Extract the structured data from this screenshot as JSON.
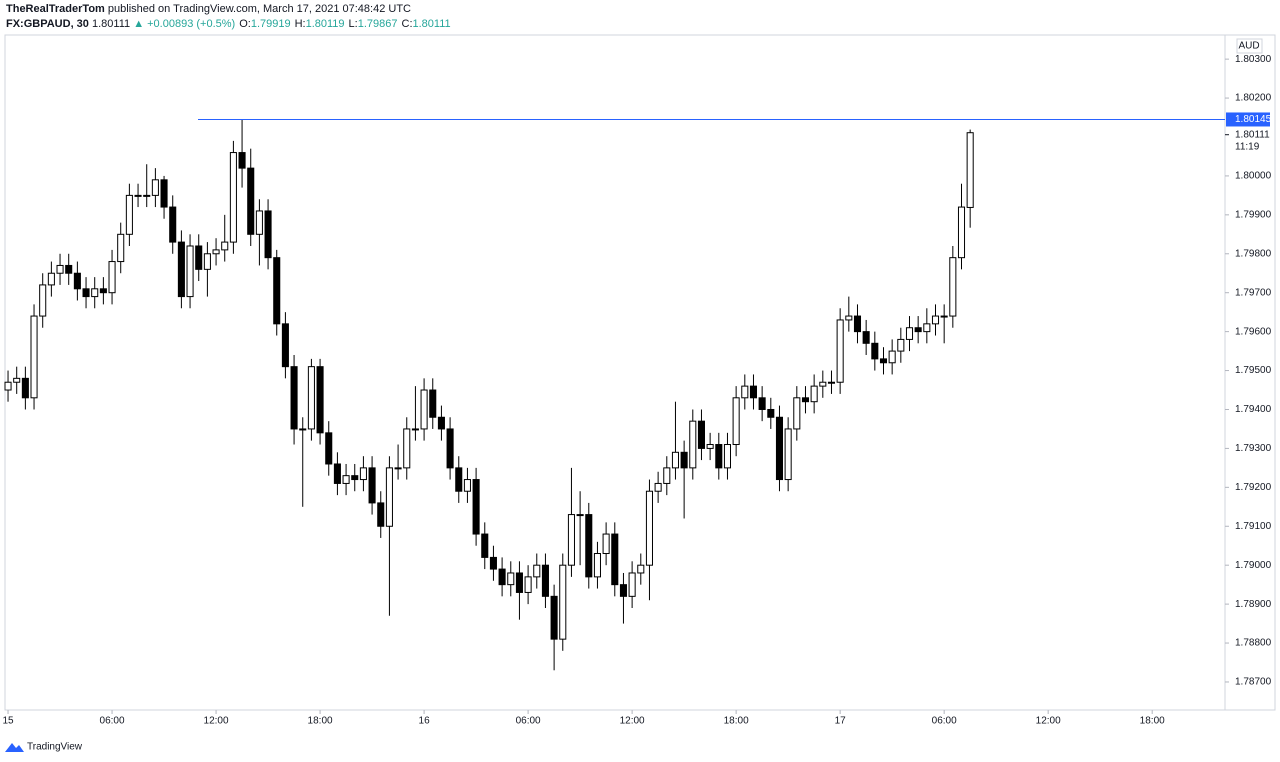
{
  "header": {
    "author": "TheRealTraderTom",
    "published": "published on TradingView.com, March 17, 2021 07:48:42 UTC",
    "symbol": "FX:GBPAUD, 30",
    "price": "1.80111",
    "change": "▲ +0.00893 (+0.5%)",
    "ohlc": [
      {
        "key": "O:",
        "value": "1.79919"
      },
      {
        "key": "H:",
        "value": "1.80119"
      },
      {
        "key": "L:",
        "value": "1.79867"
      },
      {
        "key": "C:",
        "value": "1.80111"
      }
    ]
  },
  "chart_data": {
    "type": "candlestick",
    "currency": "AUD",
    "up_color": "#ffffff",
    "down_color": "#000000",
    "wick_color": "#000000",
    "xlim": [
      -0.35,
      140.4
    ],
    "xticks": [
      {
        "value": 0,
        "label": "15"
      },
      {
        "value": 12,
        "label": "06:00"
      },
      {
        "value": 24,
        "label": "12:00"
      },
      {
        "value": 36,
        "label": "18:00"
      },
      {
        "value": 48,
        "label": "16"
      },
      {
        "value": 60,
        "label": "06:00"
      },
      {
        "value": 72,
        "label": "12:00"
      },
      {
        "value": 84,
        "label": "18:00"
      },
      {
        "value": 96,
        "label": "17"
      },
      {
        "value": 108,
        "label": "06:00"
      },
      {
        "value": 120,
        "label": "12:00"
      },
      {
        "value": 132,
        "label": "18:00"
      }
    ],
    "ylim": [
      1.78628,
      1.80362
    ],
    "yticks": [
      {
        "value": 1.787,
        "label": "1.78700"
      },
      {
        "value": 1.788,
        "label": "1.78800"
      },
      {
        "value": 1.789,
        "label": "1.78900"
      },
      {
        "value": 1.79,
        "label": "1.79000"
      },
      {
        "value": 1.791,
        "label": "1.79100"
      },
      {
        "value": 1.792,
        "label": "1.79200"
      },
      {
        "value": 1.793,
        "label": "1.79300"
      },
      {
        "value": 1.794,
        "label": "1.79400"
      },
      {
        "value": 1.795,
        "label": "1.79500"
      },
      {
        "value": 1.796,
        "label": "1.79600"
      },
      {
        "value": 1.797,
        "label": "1.79700"
      },
      {
        "value": 1.798,
        "label": "1.79800"
      },
      {
        "value": 1.799,
        "label": "1.79900"
      },
      {
        "value": 1.8,
        "label": "1.80000"
      },
      {
        "value": 1.802,
        "label": "1.80200"
      },
      {
        "value": 1.803,
        "label": "1.80300"
      }
    ],
    "hline": {
      "value": 1.80145,
      "color": "#2962ff"
    },
    "last_price": 1.80111,
    "countdown": "11:19",
    "open": [
      1.7945,
      1.7947,
      1.7948,
      1.7943,
      1.7964,
      1.7972,
      1.7975,
      1.7977,
      1.7975,
      1.7971,
      1.7969,
      1.7971,
      1.797,
      1.7978,
      1.7985,
      1.7995,
      1.7995,
      1.7995,
      1.7999,
      1.7992,
      1.7983,
      1.7969,
      1.7982,
      1.7976,
      1.798,
      1.7981,
      1.7983,
      1.8006,
      1.8002,
      1.7985,
      1.7991,
      1.7979,
      1.7962,
      1.7951,
      1.7935,
      1.7935,
      1.7951,
      1.7934,
      1.7926,
      1.7921,
      1.7923,
      1.7922,
      1.7925,
      1.7916,
      1.791,
      1.7925,
      1.7925,
      1.7935,
      1.7935,
      1.7945,
      1.7938,
      1.7935,
      1.7925,
      1.7919,
      1.7922,
      1.7908,
      1.7902,
      1.7899,
      1.7895,
      1.7898,
      1.7893,
      1.7897,
      1.79,
      1.7892,
      1.7881,
      1.79,
      1.7913,
      1.7913,
      1.7897,
      1.7903,
      1.7908,
      1.7895,
      1.7892,
      1.7898,
      1.79,
      1.7919,
      1.7921,
      1.7925,
      1.7929,
      1.7925,
      1.7937,
      1.793,
      1.7931,
      1.7925,
      1.7931,
      1.7943,
      1.7946,
      1.7943,
      1.794,
      1.7938,
      1.7922,
      1.7935,
      1.7943,
      1.7942,
      1.7946,
      1.7947,
      1.7947,
      1.7963,
      1.7964,
      1.796,
      1.7957,
      1.7953,
      1.7952,
      1.7955,
      1.7958,
      1.7961,
      1.796,
      1.7962,
      1.7964,
      1.7964,
      1.7979,
      1.79919
    ],
    "high": [
      1.795,
      1.7951,
      1.7951,
      1.7967,
      1.7975,
      1.7978,
      1.798,
      1.798,
      1.7978,
      1.7974,
      1.7974,
      1.7974,
      1.7981,
      1.7988,
      1.7998,
      1.7998,
      1.8003,
      1.8002,
      1.8,
      1.7995,
      1.7986,
      1.7985,
      1.7985,
      1.7983,
      1.7984,
      1.799,
      1.8009,
      1.80145,
      1.8007,
      1.7994,
      1.7994,
      1.7981,
      1.7965,
      1.7954,
      1.7938,
      1.7953,
      1.7953,
      1.7937,
      1.7929,
      1.7926,
      1.7926,
      1.7928,
      1.7928,
      1.7919,
      1.7928,
      1.7931,
      1.7938,
      1.7946,
      1.7948,
      1.7948,
      1.7941,
      1.7938,
      1.7928,
      1.7925,
      1.7925,
      1.7911,
      1.7905,
      1.7902,
      1.7901,
      1.7901,
      1.79,
      1.7903,
      1.7903,
      1.7895,
      1.7903,
      1.7925,
      1.7919,
      1.7916,
      1.7906,
      1.7911,
      1.7911,
      1.7898,
      1.7901,
      1.7903,
      1.7922,
      1.7924,
      1.7928,
      1.7942,
      1.7932,
      1.794,
      1.794,
      1.7934,
      1.7934,
      1.7934,
      1.7946,
      1.7949,
      1.7949,
      1.7946,
      1.7943,
      1.7941,
      1.7938,
      1.7946,
      1.7946,
      1.7949,
      1.795,
      1.795,
      1.7966,
      1.7969,
      1.7967,
      1.7963,
      1.796,
      1.7956,
      1.7958,
      1.7961,
      1.7964,
      1.7964,
      1.7966,
      1.7967,
      1.7967,
      1.7982,
      1.7998,
      1.80119
    ],
    "low": [
      1.7942,
      1.7944,
      1.794,
      1.794,
      1.7961,
      1.7969,
      1.7972,
      1.7972,
      1.7968,
      1.7966,
      1.7966,
      1.7967,
      1.7967,
      1.7975,
      1.7982,
      1.7992,
      1.7992,
      1.7992,
      1.7989,
      1.798,
      1.7966,
      1.7966,
      1.7973,
      1.7969,
      1.7977,
      1.7978,
      1.798,
      1.7997,
      1.7982,
      1.7977,
      1.7976,
      1.7959,
      1.7948,
      1.7931,
      1.7915,
      1.7932,
      1.7931,
      1.7923,
      1.7918,
      1.7918,
      1.7919,
      1.7919,
      1.7913,
      1.7907,
      1.7887,
      1.7922,
      1.7922,
      1.7932,
      1.7932,
      1.7935,
      1.7932,
      1.7922,
      1.7916,
      1.7916,
      1.7905,
      1.7899,
      1.7896,
      1.7892,
      1.7892,
      1.7886,
      1.789,
      1.7894,
      1.7889,
      1.7873,
      1.7878,
      1.7897,
      1.79,
      1.7894,
      1.7894,
      1.79,
      1.7892,
      1.7885,
      1.7889,
      1.7895,
      1.7891,
      1.7916,
      1.7918,
      1.7922,
      1.7912,
      1.7922,
      1.7927,
      1.7927,
      1.7922,
      1.7922,
      1.7928,
      1.794,
      1.794,
      1.7937,
      1.7935,
      1.7919,
      1.7919,
      1.7932,
      1.7939,
      1.7939,
      1.7943,
      1.7944,
      1.7944,
      1.796,
      1.7957,
      1.7954,
      1.795,
      1.7949,
      1.7949,
      1.7952,
      1.7955,
      1.7957,
      1.7957,
      1.7959,
      1.7957,
      1.7961,
      1.7976,
      1.79867
    ],
    "close": [
      1.7947,
      1.7948,
      1.7943,
      1.7964,
      1.7972,
      1.7975,
      1.7977,
      1.7975,
      1.7971,
      1.7969,
      1.7971,
      1.797,
      1.7978,
      1.7985,
      1.7995,
      1.7995,
      1.7995,
      1.7999,
      1.7992,
      1.7983,
      1.7969,
      1.7982,
      1.7976,
      1.798,
      1.7981,
      1.7983,
      1.8006,
      1.8002,
      1.7985,
      1.7991,
      1.7979,
      1.7962,
      1.7951,
      1.7935,
      1.7935,
      1.7951,
      1.7934,
      1.7926,
      1.7921,
      1.7923,
      1.7922,
      1.7925,
      1.7916,
      1.791,
      1.7925,
      1.7925,
      1.7935,
      1.7935,
      1.7945,
      1.7938,
      1.7935,
      1.7925,
      1.7919,
      1.7922,
      1.7908,
      1.7902,
      1.7899,
      1.7895,
      1.7898,
      1.7893,
      1.7897,
      1.79,
      1.7892,
      1.7881,
      1.79,
      1.7913,
      1.7913,
      1.7897,
      1.7903,
      1.7908,
      1.7895,
      1.7892,
      1.7898,
      1.79,
      1.7919,
      1.7921,
      1.7925,
      1.7929,
      1.7925,
      1.7937,
      1.793,
      1.7931,
      1.7925,
      1.7931,
      1.7943,
      1.7946,
      1.7943,
      1.794,
      1.7938,
      1.7922,
      1.7935,
      1.7943,
      1.7942,
      1.7946,
      1.7947,
      1.7947,
      1.7963,
      1.7964,
      1.796,
      1.7957,
      1.7953,
      1.7952,
      1.7955,
      1.7958,
      1.7961,
      1.796,
      1.7962,
      1.7964,
      1.7964,
      1.7979,
      1.7992,
      1.80111
    ]
  },
  "footer": {
    "brand": "TradingView"
  }
}
